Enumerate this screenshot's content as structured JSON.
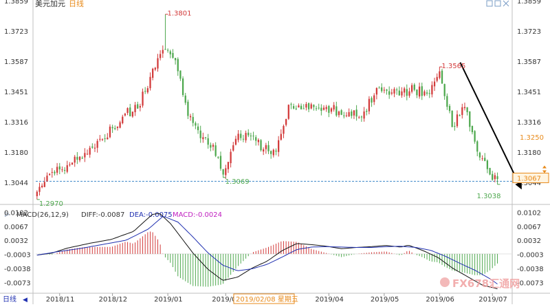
{
  "title": "美元加元",
  "title_tag": "日线",
  "period_label": "日线",
  "cursor_date": "2019/02/08 星期五",
  "watermark": "FX678汇通网",
  "colors": {
    "up": "#d23a3a",
    "down": "#4ea84e",
    "macd_line": "#111111",
    "signal_line": "#1f2fb0",
    "support": "#3a86c8",
    "price_tag": "#e88a1a",
    "axis_text": "#333333",
    "high_label": "#d23a3a",
    "low_label": "#4ea84e"
  },
  "chart_data": [
    {
      "type": "candlestick",
      "title": "美元加元",
      "x_ticks": [
        "2018/11",
        "2018/12",
        "2019/01",
        "2019/02",
        "2019/03",
        "2019/04",
        "2019/05",
        "2019/06",
        "2019/07"
      ],
      "y_ticks": [
        "1.3859",
        "1.3723",
        "1.3587",
        "1.3451",
        "1.3316",
        "1.3180",
        "1.3044"
      ],
      "ylim": [
        1.2948,
        1.3865
      ],
      "key_points": [
        {
          "label": "1.3801",
          "date": "2018/12/31",
          "value": 1.3801,
          "kind": "high"
        },
        {
          "label": "1.2970",
          "date": "2018/10/19",
          "value": 1.297,
          "kind": "low"
        },
        {
          "label": "1.3069",
          "date": "2019/01/31",
          "value": 1.3069,
          "kind": "low"
        },
        {
          "label": "1.3565",
          "date": "2019/05/31",
          "value": 1.3565,
          "kind": "high"
        },
        {
          "label": "1.3038",
          "date": "2019/07/03",
          "value": 1.3038,
          "kind": "low"
        }
      ],
      "current_price": "1.3250",
      "current_price_value": 1.325,
      "last_price_label": "1.3067",
      "support_level": 1.3052,
      "trend_arrow": {
        "from": [
          "2019/05/31",
          1.3585
        ],
        "to": [
          "2019/07/15",
          1.3015
        ]
      },
      "anchors": [
        [
          "2018/10/19",
          1.3005
        ],
        [
          "2018/10/26",
          1.3085
        ],
        [
          "2018/11/02",
          1.3105
        ],
        [
          "2018/11/09",
          1.3162
        ],
        [
          "2018/11/16",
          1.3175
        ],
        [
          "2018/11/23",
          1.3242
        ],
        [
          "2018/11/30",
          1.329
        ],
        [
          "2018/12/07",
          1.3355
        ],
        [
          "2018/12/14",
          1.3378
        ],
        [
          "2018/12/21",
          1.352
        ],
        [
          "2018/12/31",
          1.3645
        ],
        [
          "2019/01/04",
          1.3595
        ],
        [
          "2019/01/11",
          1.3345
        ],
        [
          "2019/01/18",
          1.3245
        ],
        [
          "2019/01/25",
          1.3215
        ],
        [
          "2019/01/31",
          1.3082
        ],
        [
          "2019/02/08",
          1.3265
        ],
        [
          "2019/02/15",
          1.3255
        ],
        [
          "2019/02/22",
          1.3195
        ],
        [
          "2019/03/01",
          1.3185
        ],
        [
          "2019/03/08",
          1.3395
        ],
        [
          "2019/03/15",
          1.3375
        ],
        [
          "2019/03/22",
          1.3385
        ],
        [
          "2019/03/29",
          1.3385
        ],
        [
          "2019/04/05",
          1.3365
        ],
        [
          "2019/04/12",
          1.3345
        ],
        [
          "2019/04/19",
          1.3365
        ],
        [
          "2019/04/26",
          1.347
        ],
        [
          "2019/05/03",
          1.344
        ],
        [
          "2019/05/10",
          1.3455
        ],
        [
          "2019/05/17",
          1.3462
        ],
        [
          "2019/05/24",
          1.3445
        ],
        [
          "2019/05/31",
          1.3545
        ],
        [
          "2019/06/07",
          1.3295
        ],
        [
          "2019/06/14",
          1.3385
        ],
        [
          "2019/06/21",
          1.3185
        ],
        [
          "2019/06/28",
          1.3082
        ],
        [
          "2019/07/03",
          1.3062
        ]
      ]
    },
    {
      "type": "macd",
      "label": "MACD(26,12,9)",
      "diff_text": "DIFF:-0.0087",
      "dea_text": "DEA:-0.0075",
      "macd_text": "MACD:-0.0024",
      "y_ticks": [
        "0.0102",
        "0.0067",
        "0.0032",
        "-0.0003",
        "-0.0038",
        "-0.0073"
      ],
      "ylim": [
        -0.0098,
        0.0106
      ],
      "series": [
        {
          "name": "DIFF",
          "anchors": [
            [
              0,
              -0.0003
            ],
            [
              4,
              0.0002
            ],
            [
              8,
              0.0014
            ],
            [
              14,
              0.0026
            ],
            [
              20,
              0.0036
            ],
            [
              26,
              0.0056
            ],
            [
              31,
              0.0098
            ],
            [
              33,
              0.0101
            ],
            [
              36,
              0.0075
            ],
            [
              42,
              0.0002
            ],
            [
              46,
              -0.0038
            ],
            [
              50,
              -0.0066
            ],
            [
              54,
              -0.0058
            ],
            [
              58,
              -0.0035
            ],
            [
              62,
              -0.0018
            ],
            [
              66,
              0.0008
            ],
            [
              70,
              0.0026
            ],
            [
              74,
              0.0023
            ],
            [
              78,
              0.0019
            ],
            [
              82,
              0.0013
            ],
            [
              86,
              0.0016
            ],
            [
              90,
              0.0018
            ],
            [
              94,
              0.0021
            ],
            [
              98,
              0.0017
            ],
            [
              100,
              0.0022
            ],
            [
              104,
              0.0008
            ],
            [
              108,
              -0.0009
            ],
            [
              112,
              -0.0036
            ],
            [
              116,
              -0.0057
            ],
            [
              120,
              -0.0078
            ],
            [
              124,
              -0.0087
            ]
          ]
        },
        {
          "name": "DEA",
          "anchors": [
            [
              0,
              -0.0003
            ],
            [
              6,
              0.0006
            ],
            [
              12,
              0.0014
            ],
            [
              18,
              0.0024
            ],
            [
              24,
              0.0034
            ],
            [
              30,
              0.0062
            ],
            [
              34,
              0.0094
            ],
            [
              38,
              0.0079
            ],
            [
              42,
              0.0042
            ],
            [
              46,
              0.0003
            ],
            [
              50,
              -0.0028
            ],
            [
              54,
              -0.0042
            ],
            [
              58,
              -0.0037
            ],
            [
              62,
              -0.0026
            ],
            [
              66,
              -0.0008
            ],
            [
              70,
              0.0011
            ],
            [
              74,
              0.0017
            ],
            [
              78,
              0.0018
            ],
            [
              82,
              0.0017
            ],
            [
              86,
              0.0016
            ],
            [
              90,
              0.0016
            ],
            [
              94,
              0.0018
            ],
            [
              98,
              0.0019
            ],
            [
              102,
              0.0016
            ],
            [
              106,
              0.0009
            ],
            [
              110,
              -0.0006
            ],
            [
              114,
              -0.0024
            ],
            [
              118,
              -0.0041
            ],
            [
              122,
              -0.0062
            ],
            [
              124,
              -0.0075
            ]
          ]
        }
      ]
    }
  ]
}
